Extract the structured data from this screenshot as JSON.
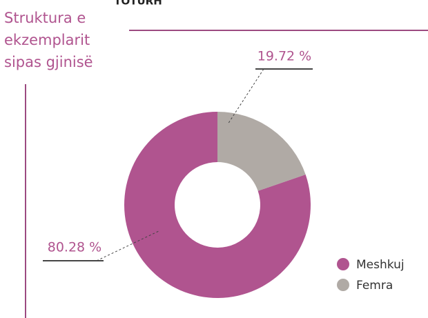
{
  "header_text": "TOTURH",
  "chart_data": {
    "type": "donut",
    "title": [
      "Struktura e",
      "ekzemplarit",
      "sipas gjinisë"
    ],
    "categories": [
      "Meshkuj",
      "Femra"
    ],
    "values": [
      80.28,
      19.72
    ],
    "value_labels": [
      "80.28 %",
      "19.72 %"
    ],
    "colors": [
      "#b0548f",
      "#b0aaa5"
    ],
    "legend": "bottom-right"
  }
}
